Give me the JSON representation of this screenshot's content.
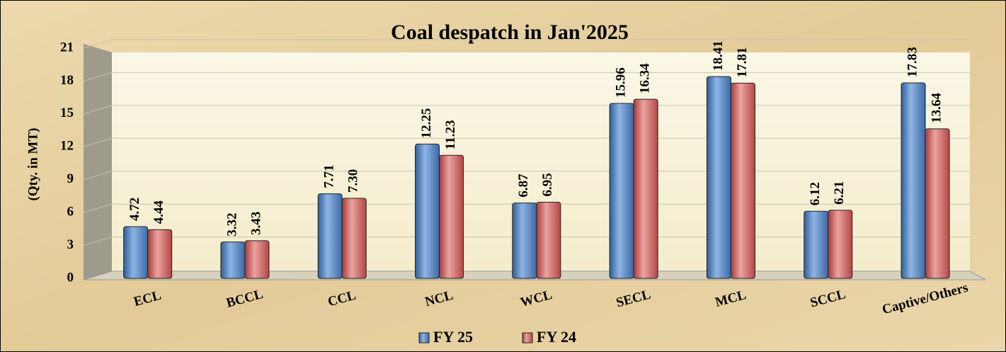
{
  "chart_data": {
    "type": "bar",
    "title": "Coal despatch in Jan'2025",
    "y_label": "(Qty. in MT)",
    "categories": [
      "ECL",
      "BCCL",
      "CCL",
      "NCL",
      "WCL",
      "SECL",
      "MCL",
      "SCCL",
      "Captive/Others"
    ],
    "series": [
      {
        "name": "FY 25",
        "color": "#4f81bd",
        "values": [
          4.72,
          3.32,
          7.71,
          12.25,
          6.87,
          15.96,
          18.41,
          6.12,
          17.83
        ],
        "value_labels": [
          "4.72",
          "3.32",
          "7.71",
          "12.25",
          "6.87",
          "15.96",
          "18.41",
          "6.12",
          "17.83"
        ]
      },
      {
        "name": "FY 24",
        "color": "#d46a67",
        "values": [
          4.44,
          3.43,
          7.3,
          11.23,
          6.95,
          16.34,
          17.81,
          6.21,
          13.64
        ],
        "value_labels": [
          "4.44",
          "3.43",
          "7.30",
          "11.23",
          "6.95",
          "16.34",
          "17.81",
          "6.21",
          "13.64"
        ]
      }
    ],
    "ylim": [
      0,
      21
    ],
    "yticks": [
      0,
      3,
      6,
      9,
      12,
      15,
      18,
      21
    ],
    "grid": true,
    "legend": "bottom"
  }
}
